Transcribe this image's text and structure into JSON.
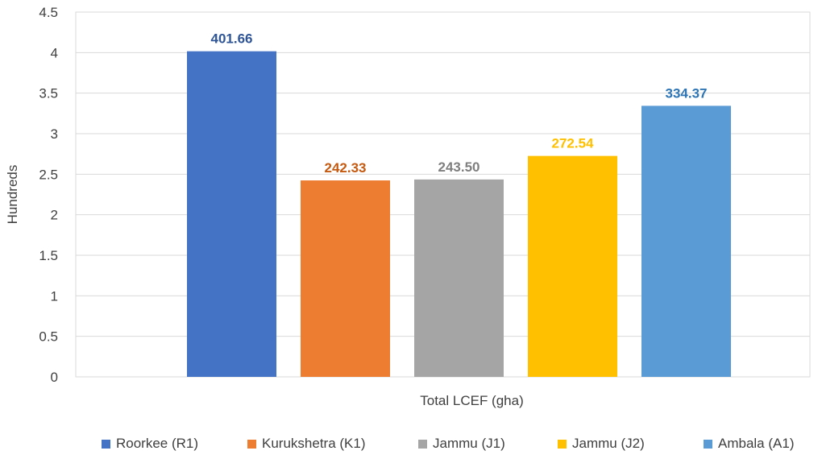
{
  "chart_data": {
    "type": "bar",
    "title": "",
    "xlabel": "Total LCEF (gha)",
    "ylabel": "Hundreds",
    "ylim": [
      0,
      4.5
    ],
    "y_ticks": [
      "0",
      "0.5",
      "1",
      "1.5",
      "2",
      "2.5",
      "3",
      "3.5",
      "4",
      "4.5"
    ],
    "y_tick_values": [
      0,
      0.5,
      1,
      1.5,
      2,
      2.5,
      3,
      3.5,
      4,
      4.5
    ],
    "grid": true,
    "legend_position": "bottom",
    "categories": [
      "Total LCEF (gha)"
    ],
    "series": [
      {
        "name": "Roorkee (R1)",
        "values": [
          4.0166
        ],
        "label": "401.66",
        "color": "#4472C4",
        "label_color": "#2F5597"
      },
      {
        "name": "Kurukshetra (K1)",
        "values": [
          2.4233
        ],
        "label": "242.33",
        "color": "#ED7D31",
        "label_color": "#C55A11"
      },
      {
        "name": "Jammu (J1)",
        "values": [
          2.435
        ],
        "label": "243.50",
        "color": "#A5A5A5",
        "label_color": "#7F7F7F"
      },
      {
        "name": "Jammu (J2)",
        "values": [
          2.7254
        ],
        "label": "272.54",
        "color": "#FFC000",
        "label_color": "#FFC000"
      },
      {
        "name": "Ambala (A1)",
        "values": [
          3.3437
        ],
        "label": "334.37",
        "color": "#5B9BD5",
        "label_color": "#2E75B6"
      }
    ]
  }
}
